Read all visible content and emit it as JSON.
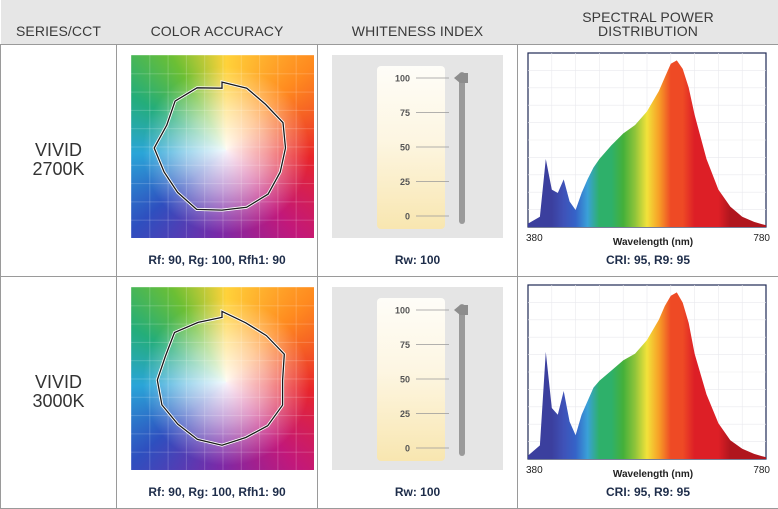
{
  "headers": {
    "series": "SERIES/CCT",
    "color_accuracy": "COLOR ACCURACY",
    "whiteness": "WHITENESS INDEX",
    "spd_line1": "SPECTRAL POWER",
    "spd_line2": "DISTRIBUTION"
  },
  "rows": [
    {
      "series_line1": "VIVID",
      "series_line2": "2700K",
      "color_caption": "Rf: 90, Rg: 100, Rfh1: 90",
      "whiteness_caption": "Rw: 100",
      "whiteness_value": 100,
      "spd_caption": "CRI: 95, R9: 95"
    },
    {
      "series_line1": "VIVID",
      "series_line2": "3000K",
      "color_caption": "Rf: 90, Rg: 100, Rfh1: 90",
      "whiteness_caption": "Rw: 100",
      "whiteness_value": 100,
      "spd_caption": "CRI: 95, R9: 95"
    }
  ],
  "gauge": {
    "ticks": [
      "100",
      "75",
      "50",
      "25",
      "0"
    ]
  },
  "chart_data": [
    {
      "type": "area",
      "title": "",
      "xlabel": "Wavelength (nm)",
      "ylabel": "",
      "xlim": [
        380,
        780
      ],
      "x_tick_labels": [
        "380",
        "780"
      ],
      "x": [
        380,
        400,
        410,
        420,
        430,
        440,
        450,
        460,
        470,
        480,
        490,
        500,
        520,
        540,
        560,
        580,
        600,
        610,
        620,
        630,
        640,
        650,
        660,
        680,
        700,
        720,
        740,
        760,
        780
      ],
      "values": [
        0.02,
        0.06,
        0.4,
        0.22,
        0.2,
        0.28,
        0.15,
        0.1,
        0.2,
        0.28,
        0.35,
        0.4,
        0.48,
        0.55,
        0.6,
        0.68,
        0.8,
        0.88,
        0.96,
        0.98,
        0.93,
        0.82,
        0.66,
        0.4,
        0.22,
        0.12,
        0.06,
        0.03,
        0.01
      ]
    },
    {
      "type": "area",
      "title": "",
      "xlabel": "Wavelength (nm)",
      "ylabel": "",
      "xlim": [
        380,
        780
      ],
      "x_tick_labels": [
        "380",
        "780"
      ],
      "x": [
        380,
        400,
        410,
        420,
        430,
        440,
        450,
        460,
        470,
        480,
        490,
        500,
        520,
        540,
        560,
        580,
        600,
        610,
        620,
        630,
        640,
        650,
        660,
        680,
        700,
        720,
        740,
        760,
        780
      ],
      "values": [
        0.02,
        0.08,
        0.63,
        0.3,
        0.26,
        0.4,
        0.22,
        0.14,
        0.26,
        0.34,
        0.42,
        0.46,
        0.52,
        0.58,
        0.62,
        0.7,
        0.82,
        0.9,
        0.96,
        0.98,
        0.92,
        0.8,
        0.62,
        0.38,
        0.21,
        0.11,
        0.06,
        0.03,
        0.01
      ]
    }
  ]
}
